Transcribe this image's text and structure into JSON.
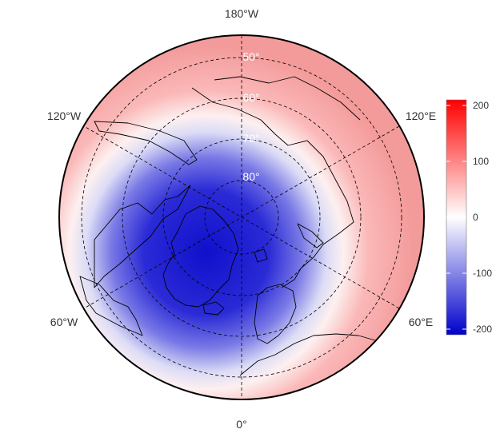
{
  "projection": "north polar stereographic",
  "longitude_labels": {
    "top": "180°W",
    "upper_left": "120°W",
    "upper_right": "120°E",
    "lower_left": "60°W",
    "lower_right": "60°E",
    "bottom": "0°"
  },
  "latitude_labels": [
    "50°",
    "60°",
    "70°",
    "80°"
  ],
  "colorbar": {
    "min": -210,
    "max": 210,
    "ticks": [
      "200",
      "100",
      "0",
      "-100",
      "-200"
    ],
    "tick_values": [
      200,
      100,
      0,
      -100,
      -200
    ],
    "colors": {
      "low": "#0000cc",
      "mid": "#ffffff",
      "high": "#ff0000"
    }
  },
  "field": {
    "pattern": "negative anomaly over the pole, positive ring at mid-latitudes",
    "center_value": -200,
    "minimum_near": "Greenland",
    "edge_value": 80
  },
  "colors": {
    "coastline": "#000000",
    "gridline": "#000000",
    "background": "#ffffff"
  }
}
